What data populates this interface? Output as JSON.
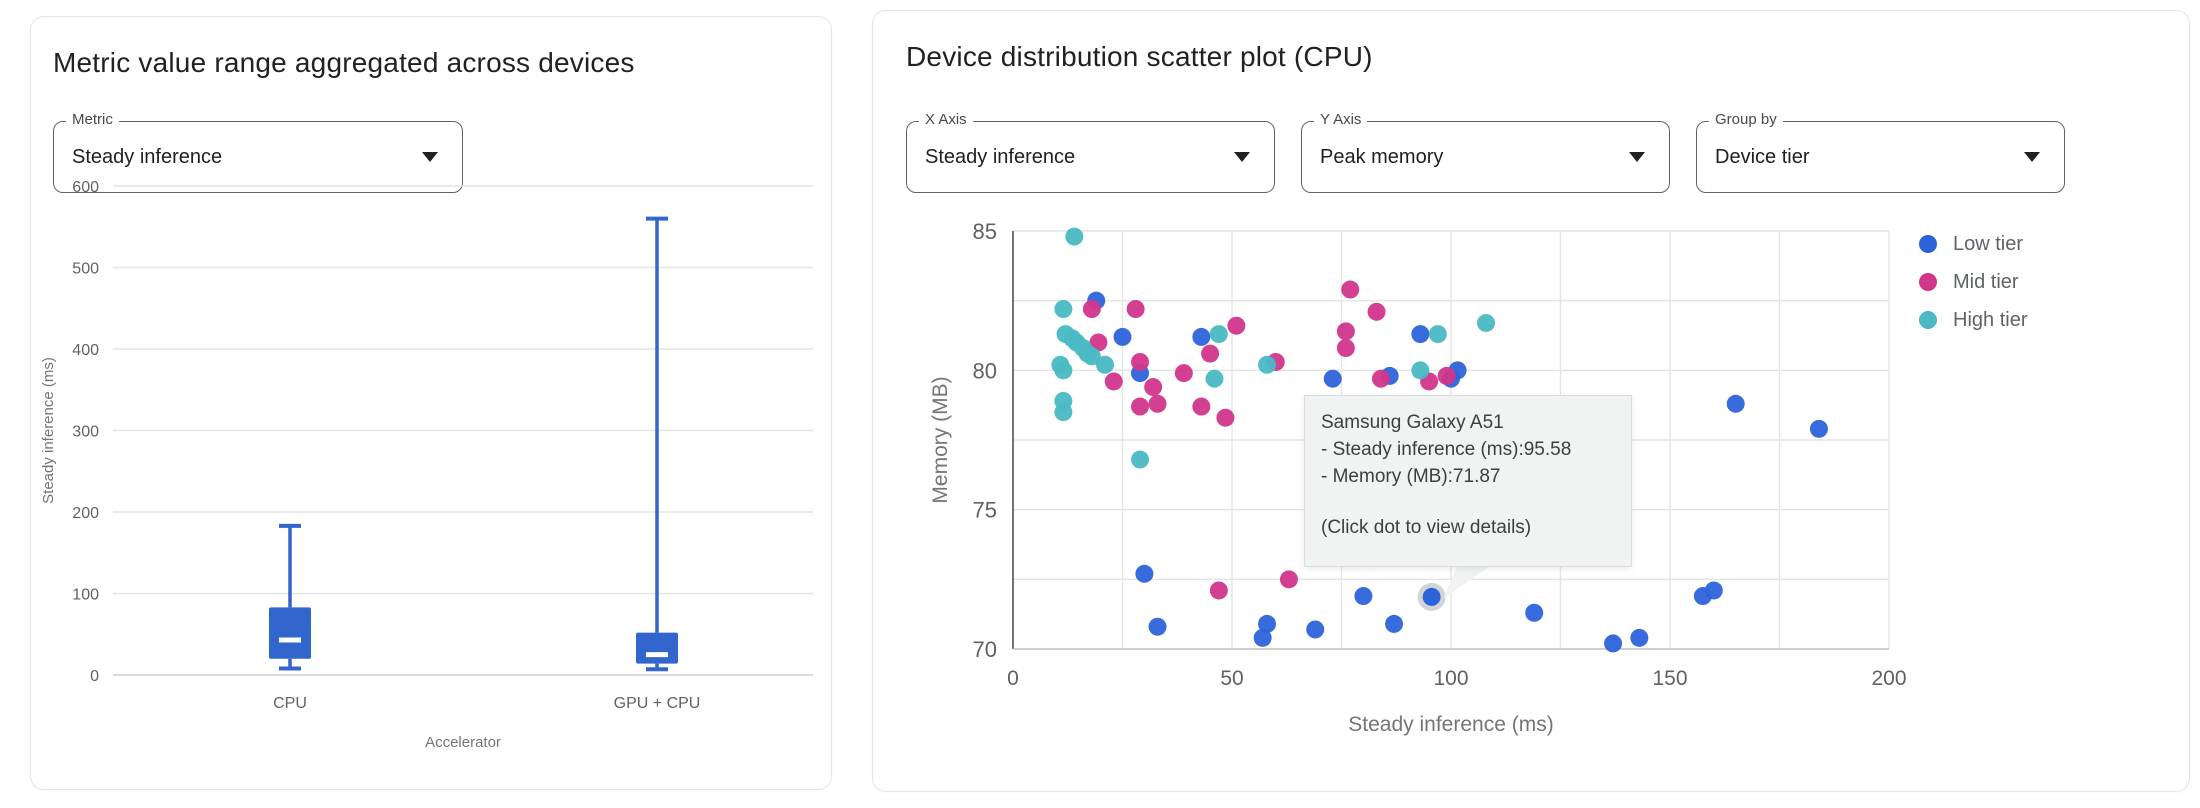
{
  "colors": {
    "box_blue": "#3366cc",
    "low_tier": "#2d63d9",
    "mid_tier": "#d2368b",
    "high_tier": "#4ab9c4",
    "grid": "#e4e4e4",
    "tick_text": "#616161",
    "axis_title_text": "#757575"
  },
  "left_panel": {
    "title": "Metric value range aggregated across devices",
    "metric_select": {
      "label": "Metric",
      "value": "Steady inference"
    }
  },
  "right_panel": {
    "title": "Device distribution scatter plot (CPU)",
    "x_select": {
      "label": "X Axis",
      "value": "Steady inference"
    },
    "y_select": {
      "label": "Y Axis",
      "value": "Peak memory"
    },
    "group_select": {
      "label": "Group by",
      "value": "Device tier"
    },
    "tooltip": {
      "device": "Samsung Galaxy A51",
      "line_x": "- Steady inference (ms):95.58",
      "line_y": "- Memory (MB):71.87",
      "footer": "(Click dot to view details)"
    }
  },
  "chart_data": [
    {
      "type": "box",
      "categories": [
        "CPU",
        "GPU + CPU"
      ],
      "series": [
        {
          "label": "CPU",
          "min": 8,
          "q1": 20,
          "median": 43,
          "q3": 83,
          "max": 183
        },
        {
          "label": "GPU + CPU",
          "min": 7,
          "q1": 14,
          "median": 25,
          "q3": 52,
          "max": 560
        }
      ],
      "xlabel": "Accelerator",
      "ylabel": "Steady inference (ms)",
      "ylim": [
        0,
        600
      ],
      "ytick_step": 100,
      "grid": true
    },
    {
      "type": "scatter",
      "xlabel": "Steady inference (ms)",
      "ylabel": "Memory (MB)",
      "xlim": [
        0,
        200
      ],
      "ylim": [
        70,
        85
      ],
      "xticks": [
        0,
        50,
        100,
        150,
        200
      ],
      "yticks": [
        70,
        75,
        80,
        85
      ],
      "grid_step_x": 25,
      "grid_step_y": 2.5,
      "legend_position": "right",
      "series": [
        {
          "name": "Low tier",
          "color_key": "low_tier",
          "points": [
            [
              19,
              82.5
            ],
            [
              25,
              81.2
            ],
            [
              43,
              81.2
            ],
            [
              29,
              79.9
            ],
            [
              73,
              79.7
            ],
            [
              86,
              79.8
            ],
            [
              93,
              81.3
            ],
            [
              100,
              79.7
            ],
            [
              101.5,
              80
            ],
            [
              165,
              78.8
            ],
            [
              184,
              77.9
            ],
            [
              30,
              72.7
            ],
            [
              33,
              70.8
            ],
            [
              57,
              70.4
            ],
            [
              58,
              70.9
            ],
            [
              69,
              70.7
            ],
            [
              80,
              71.9
            ],
            [
              87,
              70.9
            ],
            [
              119,
              71.3
            ],
            [
              137,
              70.2
            ],
            [
              143,
              70.4
            ],
            [
              157.5,
              71.9
            ],
            [
              160,
              72.1
            ]
          ]
        },
        {
          "name": "Mid tier",
          "color_key": "mid_tier",
          "points": [
            [
              18,
              82.2
            ],
            [
              28,
              82.2
            ],
            [
              19.5,
              81
            ],
            [
              23,
              79.6
            ],
            [
              29,
              80.3
            ],
            [
              32,
              79.4
            ],
            [
              29,
              78.7
            ],
            [
              33,
              78.8
            ],
            [
              39,
              79.9
            ],
            [
              45,
              80.6
            ],
            [
              51,
              81.6
            ],
            [
              43,
              78.7
            ],
            [
              48.5,
              78.3
            ],
            [
              60,
              80.3
            ],
            [
              77,
              82.9
            ],
            [
              83,
              82.1
            ],
            [
              76,
              81.4
            ],
            [
              76,
              80.8
            ],
            [
              84,
              79.7
            ],
            [
              95,
              79.6
            ],
            [
              99,
              79.8
            ],
            [
              47,
              72.1
            ],
            [
              63,
              72.5
            ]
          ]
        },
        {
          "name": "High tier",
          "color_key": "high_tier",
          "points": [
            [
              14,
              84.8
            ],
            [
              11.5,
              82.2
            ],
            [
              12,
              81.3
            ],
            [
              13.5,
              81.15
            ],
            [
              14.5,
              81
            ],
            [
              16,
              80.8
            ],
            [
              17,
              80.6
            ],
            [
              18,
              80.5
            ],
            [
              10.8,
              80.2
            ],
            [
              11.5,
              80
            ],
            [
              21,
              80.2
            ],
            [
              11.5,
              78.9
            ],
            [
              11.5,
              78.5
            ],
            [
              47,
              81.3
            ],
            [
              46,
              79.7
            ],
            [
              58,
              80.2
            ],
            [
              93,
              80
            ],
            [
              97,
              81.3
            ],
            [
              108,
              81.7
            ],
            [
              29,
              76.8
            ]
          ]
        }
      ],
      "highlighted_point": {
        "series": "Low tier",
        "x": 95.58,
        "y": 71.87
      }
    }
  ]
}
